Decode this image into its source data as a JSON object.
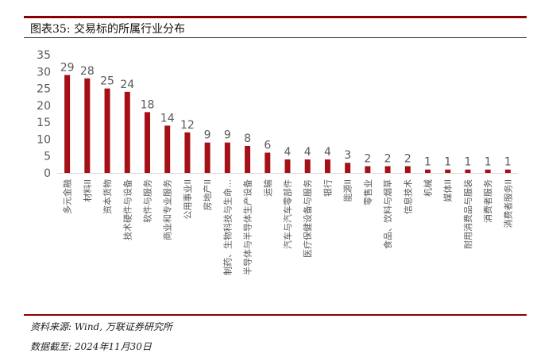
{
  "header": {
    "title": "图表35:  交易标的所属行业分布"
  },
  "footer": {
    "source": "资料来源:  Wind,  万联证券研究所",
    "data_date": "数据截至:  2024年11月30日"
  },
  "colors": {
    "bar": "#a50f15",
    "accent_rule": "#8b0000",
    "axis_text": "#595959"
  },
  "chart_data": {
    "type": "bar",
    "title": "",
    "xlabel": "",
    "ylabel": "",
    "ylim": [
      0,
      35
    ],
    "yticks": [
      0,
      5,
      10,
      15,
      20,
      25,
      30,
      35
    ],
    "grid": false,
    "legend": "none",
    "categories": [
      "多元金融",
      "材料II",
      "资本货物",
      "技术硬件与设备",
      "软件与服务",
      "商业和专业服务",
      "公用事业II",
      "房地产II",
      "制药、生物科技与生命…",
      "半导体与半导体生产设备",
      "运输",
      "汽车与汽车零部件",
      "医疗保健设备与服务",
      "银行",
      "能源II",
      "零售业",
      "食品、饮料与烟草",
      "信息技术",
      "机械",
      "媒体II",
      "耐用消费品与服装",
      "消费者服务",
      "消费者服务II"
    ],
    "values": [
      29,
      28,
      25,
      24,
      18,
      14,
      12,
      9,
      9,
      8,
      6,
      4,
      4,
      4,
      3,
      2,
      2,
      2,
      1,
      1,
      1,
      1,
      1
    ]
  }
}
